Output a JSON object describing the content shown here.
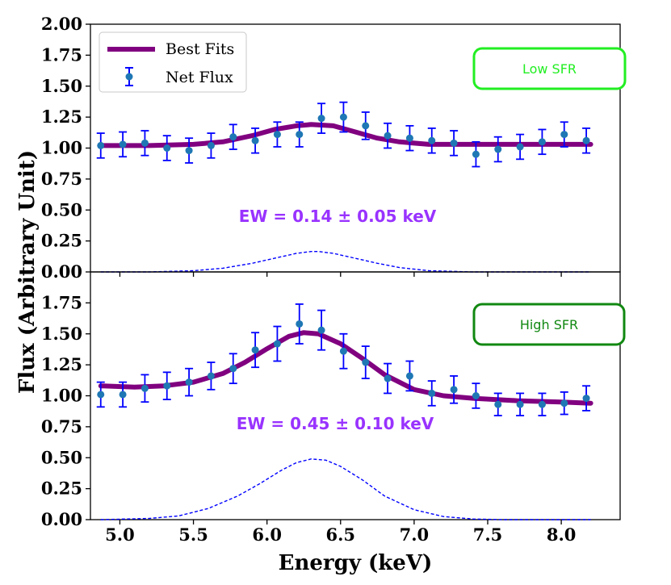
{
  "chart_data": {
    "type": "line",
    "shared": {
      "xlabel": "Energy (keV)",
      "ylabel": "Flux (Arbitrary Unit)",
      "xlim": [
        4.8,
        8.4
      ],
      "xticks": [
        "5.0",
        "5.5",
        "6.0",
        "6.5",
        "7.0",
        "7.5",
        "8.0"
      ],
      "legend": {
        "position": "top-left",
        "entries": [
          "Best Fits",
          "Net Flux"
        ]
      },
      "colors": {
        "best_fit": "#800080",
        "points": "#1f77b4",
        "errorbars": "#0000ff",
        "dashed": "#0000ff"
      }
    },
    "panels": [
      {
        "label": "Low SFR",
        "label_color": "#22ee22",
        "ylim": [
          0,
          2
        ],
        "yticks": [
          "0.00",
          "0.25",
          "0.50",
          "0.75",
          "1.00",
          "1.25",
          "1.50",
          "1.75",
          "2.00"
        ],
        "ew_text": "EW = 0.14 ± 0.05 keV",
        "ew_color": "#9933ff",
        "net_flux": {
          "x": [
            4.87,
            5.02,
            5.17,
            5.32,
            5.47,
            5.62,
            5.77,
            5.92,
            6.07,
            6.22,
            6.37,
            6.52,
            6.67,
            6.82,
            6.97,
            7.12,
            7.27,
            7.42,
            7.57,
            7.72,
            7.87,
            8.02,
            8.17
          ],
          "y": [
            1.02,
            1.03,
            1.04,
            1.0,
            0.98,
            1.02,
            1.09,
            1.06,
            1.11,
            1.11,
            1.24,
            1.25,
            1.18,
            1.1,
            1.08,
            1.06,
            1.04,
            0.95,
            0.99,
            1.01,
            1.05,
            1.11,
            1.06
          ],
          "yerr": [
            0.1,
            0.1,
            0.1,
            0.1,
            0.1,
            0.1,
            0.1,
            0.1,
            0.1,
            0.1,
            0.12,
            0.12,
            0.11,
            0.1,
            0.1,
            0.1,
            0.1,
            0.1,
            0.1,
            0.1,
            0.1,
            0.1,
            0.1
          ]
        },
        "best_fit": {
          "x": [
            4.87,
            5.2,
            5.5,
            5.7,
            5.9,
            6.05,
            6.2,
            6.3,
            6.45,
            6.6,
            6.75,
            6.9,
            7.1,
            7.4,
            7.8,
            8.2
          ],
          "y": [
            1.02,
            1.02,
            1.03,
            1.05,
            1.1,
            1.15,
            1.18,
            1.19,
            1.18,
            1.13,
            1.08,
            1.05,
            1.03,
            1.03,
            1.03,
            1.03
          ]
        },
        "line_profile": {
          "x": [
            4.87,
            5.2,
            5.5,
            5.7,
            5.9,
            6.05,
            6.2,
            6.3,
            6.35,
            6.45,
            6.6,
            6.75,
            6.9,
            7.1,
            7.4,
            8.2
          ],
          "y": [
            0.0,
            0.0,
            0.01,
            0.03,
            0.07,
            0.11,
            0.15,
            0.165,
            0.165,
            0.15,
            0.11,
            0.07,
            0.035,
            0.01,
            0.0,
            0.0
          ]
        }
      },
      {
        "label": "High SFR",
        "label_color": "#118811",
        "ylim": [
          0,
          2
        ],
        "yticks": [
          "0.00",
          "0.25",
          "0.50",
          "0.75",
          "1.00",
          "1.25",
          "1.50",
          "1.75"
        ],
        "ew_text": "EW = 0.45 ± 0.10 keV",
        "ew_color": "#9933ff",
        "net_flux": {
          "x": [
            4.87,
            5.02,
            5.17,
            5.32,
            5.47,
            5.62,
            5.77,
            5.92,
            6.07,
            6.22,
            6.37,
            6.52,
            6.67,
            6.82,
            6.97,
            7.12,
            7.27,
            7.42,
            7.57,
            7.72,
            7.87,
            8.02,
            8.17
          ],
          "y": [
            1.01,
            1.01,
            1.06,
            1.08,
            1.11,
            1.16,
            1.22,
            1.37,
            1.42,
            1.58,
            1.53,
            1.36,
            1.27,
            1.14,
            1.16,
            1.02,
            1.05,
            1.0,
            0.93,
            0.93,
            0.93,
            0.94,
            0.98
          ],
          "yerr": [
            0.1,
            0.1,
            0.11,
            0.11,
            0.11,
            0.11,
            0.12,
            0.14,
            0.14,
            0.16,
            0.16,
            0.14,
            0.13,
            0.12,
            0.12,
            0.1,
            0.11,
            0.1,
            0.09,
            0.09,
            0.09,
            0.09,
            0.1
          ]
        },
        "best_fit": {
          "x": [
            4.87,
            5.1,
            5.3,
            5.5,
            5.7,
            5.85,
            6.0,
            6.15,
            6.25,
            6.35,
            6.5,
            6.65,
            6.8,
            7.0,
            7.2,
            7.4,
            7.7,
            8.0,
            8.2
          ],
          "y": [
            1.08,
            1.07,
            1.08,
            1.11,
            1.18,
            1.27,
            1.38,
            1.48,
            1.51,
            1.5,
            1.42,
            1.3,
            1.17,
            1.05,
            1.0,
            0.98,
            0.96,
            0.95,
            0.94
          ]
        },
        "line_profile": {
          "x": [
            4.87,
            5.2,
            5.4,
            5.6,
            5.8,
            5.95,
            6.1,
            6.2,
            6.3,
            6.4,
            6.5,
            6.65,
            6.8,
            7.0,
            7.2,
            7.4,
            7.6,
            8.2
          ],
          "y": [
            0.0,
            0.01,
            0.03,
            0.09,
            0.19,
            0.29,
            0.4,
            0.46,
            0.49,
            0.48,
            0.43,
            0.32,
            0.19,
            0.08,
            0.025,
            0.005,
            0.0,
            0.0
          ]
        }
      }
    ]
  }
}
